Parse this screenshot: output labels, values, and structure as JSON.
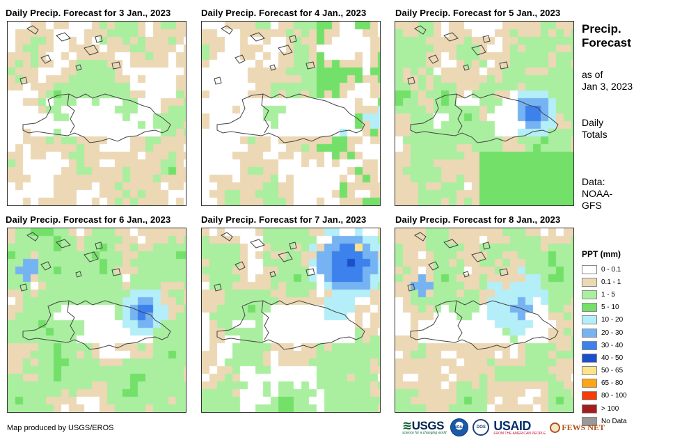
{
  "panels": [
    {
      "title": "Daily Precip. Forecast for 3 Jan., 2023",
      "seed": 11,
      "profile": "dry"
    },
    {
      "title": "Daily Precip. Forecast for 4 Jan., 2023",
      "seed": 23,
      "profile": "dryeast"
    },
    {
      "title": "Daily Precip. Forecast for 5 Jan., 2023",
      "seed": 37,
      "profile": "wet5"
    },
    {
      "title": "Daily Precip. Forecast for 6 Jan., 2023",
      "seed": 41,
      "profile": "wet6"
    },
    {
      "title": "Daily Precip. Forecast for 7 Jan., 2023",
      "seed": 53,
      "profile": "wet7"
    },
    {
      "title": "Daily Precip. Forecast for 8 Jan., 2023",
      "seed": 67,
      "profile": "wet8"
    }
  ],
  "sidebar": {
    "title_line1": "Precip.",
    "title_line2": "Forecast",
    "asof_line1": "as of",
    "asof_line2": "Jan 3, 2023",
    "daily_line1": "Daily",
    "daily_line2": "Totals",
    "data_line1": "Data:",
    "data_line2": "NOAA-",
    "data_line3": "GFS"
  },
  "legend": {
    "title": "PPT (mm)",
    "items": [
      {
        "label": "0 - 0.1",
        "color": "#ffffff"
      },
      {
        "label": "0.1 - 1",
        "color": "#ecd8b4"
      },
      {
        "label": "1 - 5",
        "color": "#a9ef9f"
      },
      {
        "label": "5 - 10",
        "color": "#73e06a"
      },
      {
        "label": "10 - 20",
        "color": "#b4eef8"
      },
      {
        "label": "20 - 30",
        "color": "#76b3f2"
      },
      {
        "label": "30 - 40",
        "color": "#3c81ec"
      },
      {
        "label": "40 - 50",
        "color": "#1b50c8"
      },
      {
        "label": "50 - 65",
        "color": "#fde38a"
      },
      {
        "label": "65 - 80",
        "color": "#fda612"
      },
      {
        "label": "80 - 100",
        "color": "#f53c0a"
      },
      {
        "label": "> 100",
        "color": "#a51c1c"
      },
      {
        "label": "No Data",
        "color": "#999999"
      }
    ]
  },
  "credit": "Map produced by USGS/EROS",
  "logos": {
    "usgs": "USGS",
    "usgs_tagline": "science for a changing world",
    "noaa": "NOAA",
    "dos": "DOS",
    "usaid": "USAID",
    "usaid_tagline": "FROM THE AMERICAN PEOPLE",
    "fewsnet": "FEWS NET"
  }
}
